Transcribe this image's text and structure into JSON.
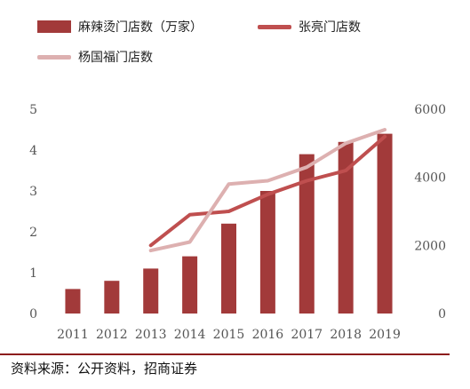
{
  "chart_data": {
    "type": "bar",
    "categories": [
      "2011",
      "2012",
      "2013",
      "2014",
      "2015",
      "2016",
      "2017",
      "2018",
      "2019"
    ],
    "series": [
      {
        "name": "麻辣烫门店数（万家）",
        "kind": "bar",
        "axis": "left",
        "color": "#a23a3a",
        "values": [
          0.6,
          0.8,
          1.1,
          1.4,
          2.2,
          3.0,
          3.9,
          4.2,
          4.4
        ]
      },
      {
        "name": "张亮门店数",
        "kind": "line",
        "axis": "right",
        "color": "#bf4f4f",
        "values": [
          null,
          null,
          2000,
          2900,
          3000,
          3500,
          3900,
          4200,
          5200
        ]
      },
      {
        "name": "杨国福门店数",
        "kind": "line",
        "axis": "right",
        "color": "#ddb0b0",
        "values": [
          null,
          null,
          1850,
          2100,
          3800,
          3900,
          4300,
          5000,
          5400
        ]
      }
    ],
    "y_left": {
      "ylim": [
        0,
        5
      ],
      "ticks": [
        "0",
        "1",
        "2",
        "3",
        "4",
        "5"
      ]
    },
    "y_right": {
      "ylim": [
        0,
        6000
      ],
      "ticks": [
        "0",
        "2000",
        "4000",
        "6000"
      ]
    },
    "grid": false,
    "legend_position": "top"
  },
  "source": "资料来源：公开资料，招商证券"
}
